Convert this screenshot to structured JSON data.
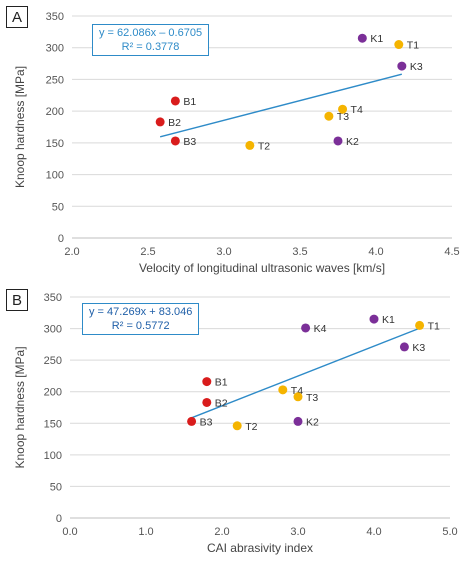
{
  "colors": {
    "red": "#d91c1c",
    "purple": "#7b2f98",
    "yellow": "#f5b400",
    "trend": "#2e8bc8",
    "grid": "#d9d9d9",
    "axis": "#555555"
  },
  "chart_data": [
    {
      "type": "scatter",
      "panel_label": "A",
      "xlabel": "Velocity of longitudinal ultrasonic waves [km/s]",
      "ylabel": "Knoop hardness [MPa]",
      "xlim": [
        2.0,
        4.5
      ],
      "ylim": [
        0,
        350
      ],
      "xticks": [
        2.0,
        2.5,
        3.0,
        3.5,
        4.0,
        4.5
      ],
      "xtick_labels": [
        "2.0",
        "2.5",
        "3.0",
        "3.5",
        "4.0",
        "4.5"
      ],
      "yticks": [
        0,
        50,
        100,
        150,
        200,
        250,
        300,
        350
      ],
      "ytick_labels": [
        "0",
        "50",
        "100",
        "150",
        "200",
        "250",
        "300",
        "350"
      ],
      "grid": "horizontal",
      "equation": "y = 62.086x – 0.6705",
      "r_squared": "R² = 0.3778",
      "trendline": {
        "x": [
          2.58,
          4.17
        ]
      },
      "points": [
        {
          "label": "B1",
          "x": 2.68,
          "y": 216,
          "color": "red"
        },
        {
          "label": "B2",
          "x": 2.58,
          "y": 183,
          "color": "red"
        },
        {
          "label": "B3",
          "x": 2.68,
          "y": 153,
          "color": "red"
        },
        {
          "label": "T2",
          "x": 3.17,
          "y": 146,
          "color": "yellow"
        },
        {
          "label": "T3",
          "x": 3.69,
          "y": 192,
          "color": "yellow"
        },
        {
          "label": "T4",
          "x": 3.78,
          "y": 203,
          "color": "yellow"
        },
        {
          "label": "T1",
          "x": 4.15,
          "y": 305,
          "color": "yellow"
        },
        {
          "label": "K1",
          "x": 3.91,
          "y": 315,
          "color": "purple"
        },
        {
          "label": "K2",
          "x": 3.75,
          "y": 153,
          "color": "purple"
        },
        {
          "label": "K3",
          "x": 4.17,
          "y": 271,
          "color": "purple"
        }
      ]
    },
    {
      "type": "scatter",
      "panel_label": "B",
      "xlabel": "CAI abrasivity index",
      "ylabel": "Knoop hardness [MPa]",
      "xlim": [
        0.0,
        5.0
      ],
      "ylim": [
        0,
        350
      ],
      "xticks": [
        0,
        1,
        2,
        3,
        4,
        5
      ],
      "xtick_labels": [
        "0.0",
        "1.0",
        "2.0",
        "3.0",
        "4.0",
        "5.0"
      ],
      "yticks": [
        0,
        50,
        100,
        150,
        200,
        250,
        300,
        350
      ],
      "ytick_labels": [
        "0",
        "50",
        "100",
        "150",
        "200",
        "250",
        "300",
        "350"
      ],
      "grid": "horizontal",
      "equation": "y = 47.269x + 83.046",
      "r_squared": "R² = 0.5772",
      "trendline": {
        "x": [
          1.6,
          4.6
        ]
      },
      "points": [
        {
          "label": "B1",
          "x": 1.8,
          "y": 216,
          "color": "red"
        },
        {
          "label": "B2",
          "x": 1.8,
          "y": 183,
          "color": "red"
        },
        {
          "label": "B3",
          "x": 1.6,
          "y": 153,
          "color": "red"
        },
        {
          "label": "T2",
          "x": 2.2,
          "y": 146,
          "color": "yellow"
        },
        {
          "label": "T4",
          "x": 2.8,
          "y": 203,
          "color": "yellow"
        },
        {
          "label": "T3",
          "x": 3.0,
          "y": 192,
          "color": "yellow"
        },
        {
          "label": "T1",
          "x": 4.6,
          "y": 305,
          "color": "yellow"
        },
        {
          "label": "K4",
          "x": 3.1,
          "y": 301,
          "color": "purple"
        },
        {
          "label": "K1",
          "x": 4.0,
          "y": 315,
          "color": "purple"
        },
        {
          "label": "K3",
          "x": 4.4,
          "y": 271,
          "color": "purple"
        },
        {
          "label": "K2",
          "x": 3.0,
          "y": 153,
          "color": "purple"
        }
      ]
    }
  ]
}
